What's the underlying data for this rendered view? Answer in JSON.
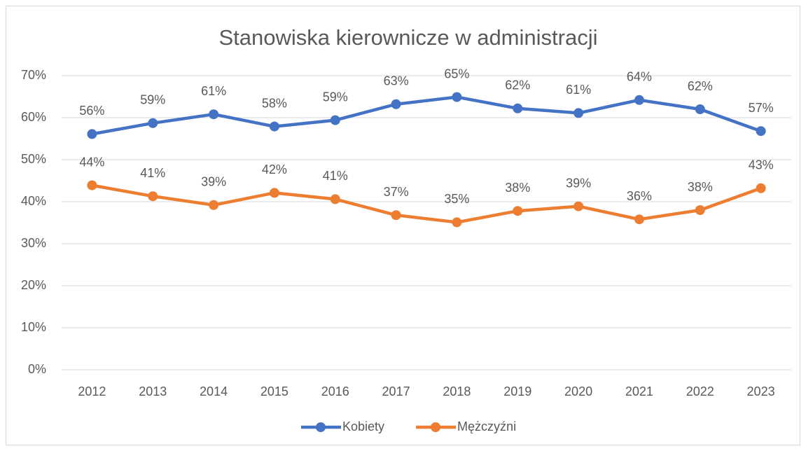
{
  "chart_data": {
    "type": "line",
    "title": "Stanowiska kierownicze w administracji",
    "categories": [
      "2012",
      "2013",
      "2014",
      "2015",
      "2016",
      "2017",
      "2018",
      "2019",
      "2020",
      "2021",
      "2022",
      "2023"
    ],
    "series": [
      {
        "name": "Kobiety",
        "color": "#4472c4",
        "values": [
          56.1,
          58.7,
          60.8,
          57.9,
          59.4,
          63.2,
          64.9,
          62.2,
          61.1,
          64.2,
          62.0,
          56.8
        ],
        "value_labels": [
          "56%",
          "59%",
          "61%",
          "58%",
          "59%",
          "63%",
          "65%",
          "62%",
          "61%",
          "64%",
          "62%",
          "57%"
        ]
      },
      {
        "name": "Mężczyźni",
        "color": "#ed7d31",
        "values": [
          43.9,
          41.3,
          39.2,
          42.1,
          40.6,
          36.8,
          35.1,
          37.8,
          38.9,
          35.8,
          38.0,
          43.2
        ],
        "value_labels": [
          "44%",
          "41%",
          "39%",
          "42%",
          "41%",
          "37%",
          "35%",
          "38%",
          "39%",
          "36%",
          "38%",
          "43%"
        ]
      }
    ],
    "ylim": [
      0,
      70
    ],
    "yticks": [
      {
        "value": 0,
        "label": "0%"
      },
      {
        "value": 10,
        "label": "10%"
      },
      {
        "value": 20,
        "label": "20%"
      },
      {
        "value": 30,
        "label": "30%"
      },
      {
        "value": 40,
        "label": "40%"
      },
      {
        "value": 50,
        "label": "50%"
      },
      {
        "value": 60,
        "label": "60%"
      },
      {
        "value": 70,
        "label": "70%"
      }
    ],
    "grid": true,
    "legend": "bottom"
  }
}
